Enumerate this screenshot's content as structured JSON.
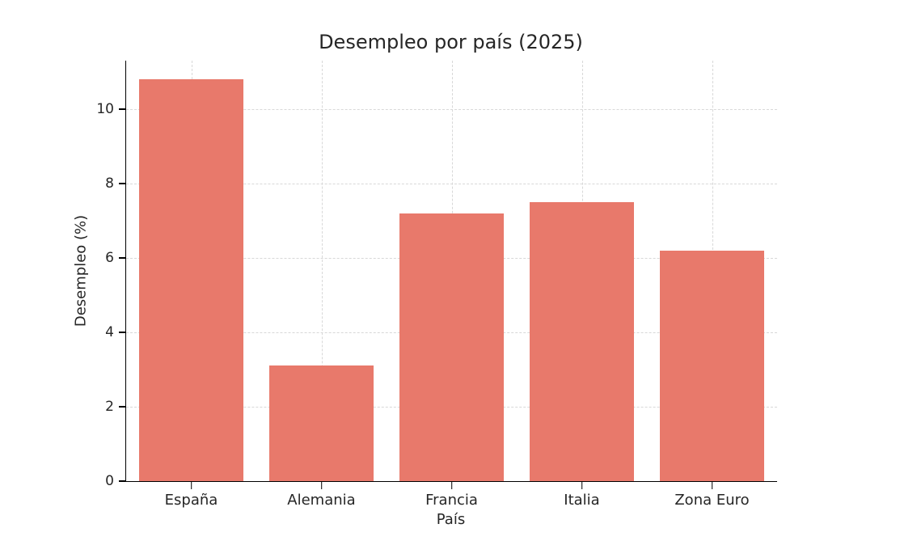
{
  "figure": {
    "background": "#ffffff"
  },
  "chart_data": {
    "type": "bar",
    "title": "Desempleo por país (2025)",
    "xlabel": "País",
    "ylabel": "Desempleo (%)",
    "categories": [
      "España",
      "Alemania",
      "Francia",
      "Italia",
      "Zona Euro"
    ],
    "values": [
      10.8,
      3.1,
      7.2,
      7.5,
      6.2
    ],
    "ylim": [
      0,
      11.3
    ],
    "yticks": [
      0,
      2,
      4,
      6,
      8,
      10
    ],
    "bar_width_fraction": 0.8,
    "grid": "dashed, horizontal and vertical at ticks",
    "legend": "none",
    "bar_color": "#e8796b",
    "axis_color": "#000000",
    "grid_color": "#d8d8d8",
    "text_color": "#262626"
  }
}
